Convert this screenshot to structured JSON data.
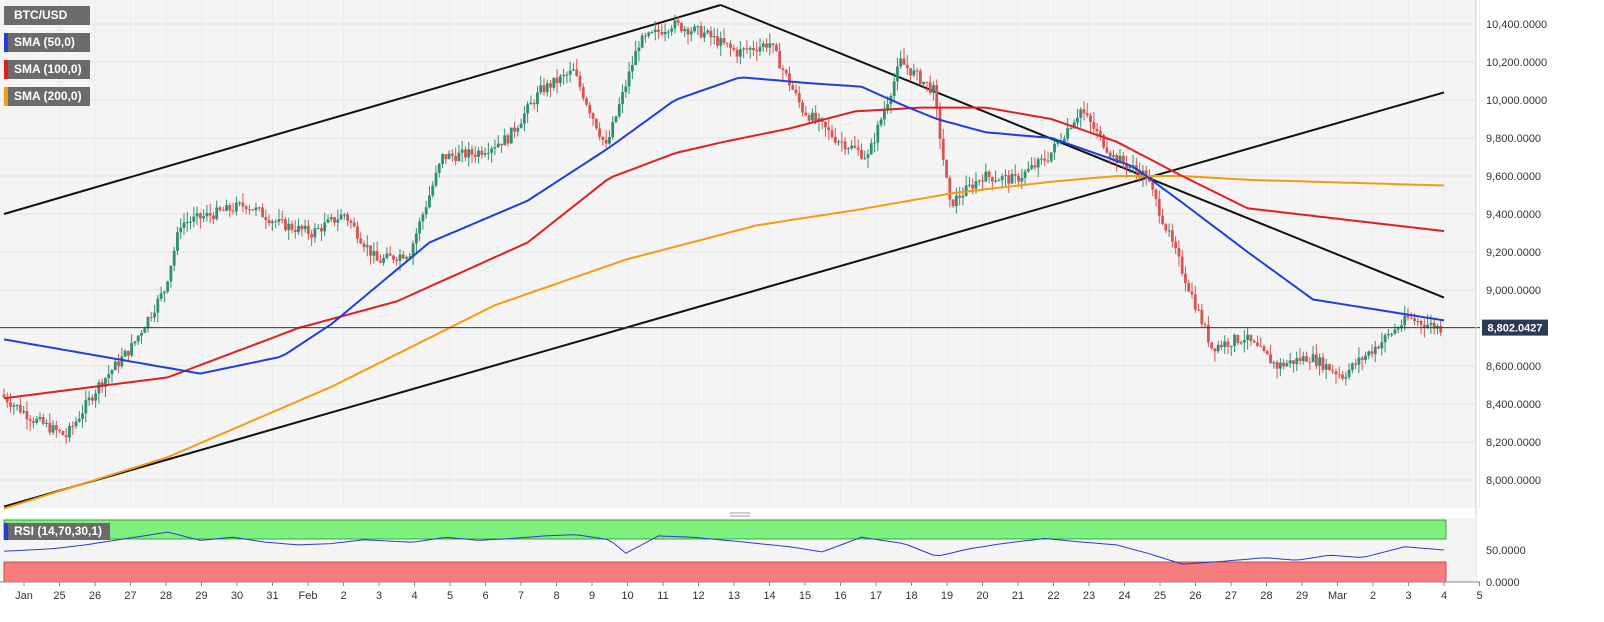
{
  "symbol": "BTC/USD",
  "indicators": [
    {
      "label": "SMA (50,0)",
      "color": "#1f3fd6"
    },
    {
      "label": "SMA (100,0)",
      "color": "#e02020"
    },
    {
      "label": "SMA (200,0)",
      "color": "#f39c12"
    }
  ],
  "rsi": {
    "label": "RSI (14,70,30,1)",
    "color": "#2a3bd0",
    "overbought_color": "#7ef07e",
    "oversold_color": "#f77c7c"
  },
  "colors": {
    "bull": "#2f8f6f",
    "bear": "#d9534f",
    "current_price_tag": "#2b3a55"
  },
  "chart_data": {
    "type": "candlestick",
    "y_ticks": [
      "10,400.0000",
      "10,200.0000",
      "10,000.0000",
      "9,800.0000",
      "9,600.0000",
      "9,400.0000",
      "9,200.0000",
      "9,000.0000",
      "8,800.0000",
      "8,600.0000",
      "8,400.0000",
      "8,200.0000",
      "8,000.0000"
    ],
    "ylim": [
      7860,
      10460
    ],
    "current_price": 8802.0427,
    "current_price_label": "8,802.0427",
    "rsi_ticks": [
      "50.0000",
      "0.0000"
    ],
    "x_ticks": [
      "Jan",
      "25",
      "26",
      "27",
      "28",
      "29",
      "30",
      "31",
      "Feb",
      "2",
      "3",
      "4",
      "5",
      "6",
      "7",
      "8",
      "9",
      "10",
      "11",
      "12",
      "13",
      "14",
      "15",
      "16",
      "17",
      "18",
      "19",
      "20",
      "21",
      "22",
      "23",
      "24",
      "25",
      "26",
      "27",
      "28",
      "29",
      "Mar",
      "2",
      "3",
      "4",
      "5"
    ],
    "price_anchors": [
      [
        0,
        8450
      ],
      [
        10,
        8320
      ],
      [
        20,
        8230
      ],
      [
        30,
        8500
      ],
      [
        40,
        8700
      ],
      [
        50,
        9000
      ],
      [
        55,
        9350
      ],
      [
        65,
        9400
      ],
      [
        75,
        9450
      ],
      [
        85,
        9350
      ],
      [
        95,
        9300
      ],
      [
        105,
        9400
      ],
      [
        115,
        9150
      ],
      [
        125,
        9200
      ],
      [
        135,
        9700
      ],
      [
        145,
        9720
      ],
      [
        155,
        9800
      ],
      [
        165,
        10050
      ],
      [
        175,
        10150
      ],
      [
        185,
        9750
      ],
      [
        195,
        10300
      ],
      [
        205,
        10400
      ],
      [
        215,
        10350
      ],
      [
        225,
        10250
      ],
      [
        235,
        10300
      ],
      [
        245,
        9950
      ],
      [
        255,
        9800
      ],
      [
        265,
        9700
      ],
      [
        275,
        10200
      ],
      [
        285,
        10050
      ],
      [
        290,
        9450
      ],
      [
        300,
        9600
      ],
      [
        310,
        9580
      ],
      [
        320,
        9700
      ],
      [
        330,
        9950
      ],
      [
        340,
        9700
      ],
      [
        350,
        9600
      ],
      [
        360,
        9150
      ],
      [
        370,
        8700
      ],
      [
        380,
        8750
      ],
      [
        390,
        8600
      ],
      [
        400,
        8650
      ],
      [
        410,
        8550
      ],
      [
        420,
        8700
      ],
      [
        430,
        8850
      ],
      [
        440,
        8800
      ]
    ],
    "sma50_anchors": [
      [
        0,
        8740
      ],
      [
        60,
        8560
      ],
      [
        85,
        8650
      ],
      [
        100,
        8820
      ],
      [
        130,
        9250
      ],
      [
        160,
        9470
      ],
      [
        185,
        9750
      ],
      [
        205,
        10000
      ],
      [
        225,
        10120
      ],
      [
        245,
        10090
      ],
      [
        262,
        10070
      ],
      [
        275,
        9970
      ],
      [
        285,
        9900
      ],
      [
        300,
        9830
      ],
      [
        320,
        9800
      ],
      [
        345,
        9650
      ],
      [
        360,
        9460
      ],
      [
        380,
        9200
      ],
      [
        400,
        8950
      ],
      [
        440,
        8840
      ]
    ],
    "sma100_anchors": [
      [
        0,
        8430
      ],
      [
        50,
        8540
      ],
      [
        90,
        8800
      ],
      [
        120,
        8940
      ],
      [
        160,
        9250
      ],
      [
        185,
        9590
      ],
      [
        205,
        9720
      ],
      [
        220,
        9780
      ],
      [
        240,
        9850
      ],
      [
        260,
        9940
      ],
      [
        280,
        9960
      ],
      [
        300,
        9960
      ],
      [
        320,
        9900
      ],
      [
        340,
        9780
      ],
      [
        360,
        9600
      ],
      [
        380,
        9430
      ],
      [
        440,
        9310
      ]
    ],
    "sma200_anchors": [
      [
        0,
        7850
      ],
      [
        50,
        8120
      ],
      [
        100,
        8490
      ],
      [
        150,
        8920
      ],
      [
        190,
        9160
      ],
      [
        230,
        9340
      ],
      [
        260,
        9420
      ],
      [
        290,
        9510
      ],
      [
        320,
        9570
      ],
      [
        340,
        9600
      ],
      [
        360,
        9600
      ],
      [
        380,
        9580
      ],
      [
        440,
        9550
      ]
    ],
    "rsi_anchors": [
      [
        0,
        48
      ],
      [
        15,
        52
      ],
      [
        25,
        58
      ],
      [
        40,
        70
      ],
      [
        50,
        78
      ],
      [
        60,
        65
      ],
      [
        70,
        70
      ],
      [
        80,
        62
      ],
      [
        90,
        58
      ],
      [
        100,
        60
      ],
      [
        110,
        66
      ],
      [
        125,
        62
      ],
      [
        135,
        70
      ],
      [
        145,
        65
      ],
      [
        155,
        68
      ],
      [
        165,
        72
      ],
      [
        175,
        74
      ],
      [
        185,
        66
      ],
      [
        190,
        45
      ],
      [
        200,
        72
      ],
      [
        210,
        70
      ],
      [
        225,
        63
      ],
      [
        240,
        55
      ],
      [
        250,
        47
      ],
      [
        262,
        70
      ],
      [
        275,
        60
      ],
      [
        285,
        40
      ],
      [
        295,
        52
      ],
      [
        305,
        60
      ],
      [
        318,
        68
      ],
      [
        330,
        62
      ],
      [
        340,
        58
      ],
      [
        350,
        44
      ],
      [
        360,
        28
      ],
      [
        372,
        32
      ],
      [
        385,
        38
      ],
      [
        395,
        34
      ],
      [
        405,
        42
      ],
      [
        415,
        38
      ],
      [
        428,
        55
      ],
      [
        440,
        50
      ]
    ],
    "trendlines": [
      {
        "name": "ascending-top",
        "from": [
          0,
          9400
        ],
        "to": [
          219,
          10500
        ]
      },
      {
        "name": "ascending-bottom",
        "from": [
          0,
          7860
        ],
        "to": [
          440,
          10040
        ]
      },
      {
        "name": "descending",
        "from": [
          219,
          10500
        ],
        "to": [
          440,
          8960
        ]
      }
    ]
  }
}
